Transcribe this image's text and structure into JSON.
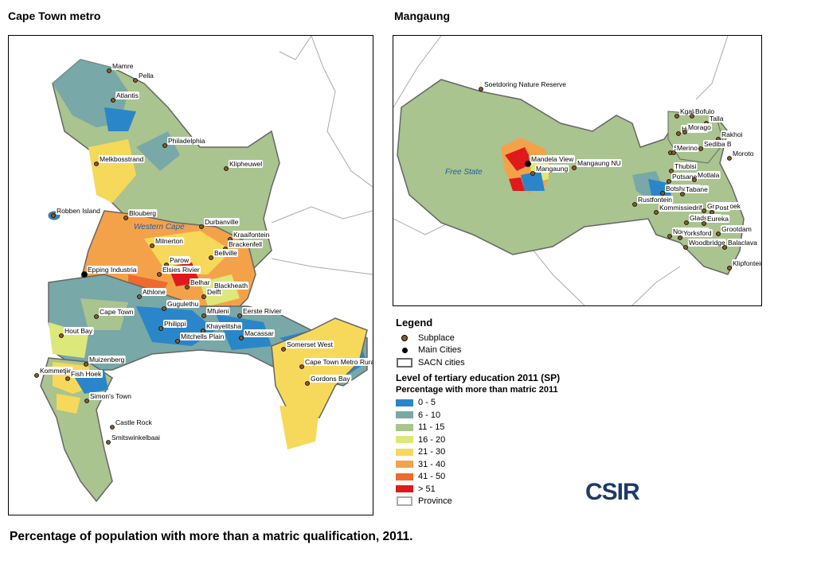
{
  "panels": {
    "left_title": "Cape Town metro",
    "right_title": "Mangaung"
  },
  "cape_town": {
    "region_label": "Western Cape",
    "places": [
      {
        "name": "Mamre"
      },
      {
        "name": "Pella"
      },
      {
        "name": "Atlantis"
      },
      {
        "name": "Philadelphia"
      },
      {
        "name": "Melkbosstrand"
      },
      {
        "name": "Klipheuwel"
      },
      {
        "name": "Robben Island"
      },
      {
        "name": "Blouberg"
      },
      {
        "name": "Durbanville"
      },
      {
        "name": "Kraaifontein"
      },
      {
        "name": "Brackenfell"
      },
      {
        "name": "Milnerton"
      },
      {
        "name": "Parow"
      },
      {
        "name": "Bellville"
      },
      {
        "name": "Elsies Rivier"
      },
      {
        "name": "Epping Industria"
      },
      {
        "name": "Belhar"
      },
      {
        "name": "Blackheath"
      },
      {
        "name": "Athlone"
      },
      {
        "name": "Delft"
      },
      {
        "name": "Gugulethu"
      },
      {
        "name": "Mfuleni"
      },
      {
        "name": "Eerste Rivier"
      },
      {
        "name": "Cape Town"
      },
      {
        "name": "Hout Bay"
      },
      {
        "name": "Philippi"
      },
      {
        "name": "Khayelitsha"
      },
      {
        "name": "Macassar"
      },
      {
        "name": "Mitchells Plain"
      },
      {
        "name": "Somerset West"
      },
      {
        "name": "Muizenberg"
      },
      {
        "name": "Cape Town Metro Rural"
      },
      {
        "name": "Kommetjie"
      },
      {
        "name": "Fish Hoek"
      },
      {
        "name": "Gordons Bay"
      },
      {
        "name": "Simon's Town"
      },
      {
        "name": "Castle Rock"
      },
      {
        "name": "Smitswinkelbaai"
      }
    ]
  },
  "mangaung": {
    "region_label": "Free State",
    "places": [
      {
        "name": "Soetdoring Nature Reserve"
      },
      {
        "name": "Kgalala"
      },
      {
        "name": "Bofulo"
      },
      {
        "name": "Talla"
      },
      {
        "name": "Houtnek"
      },
      {
        "name": "Morago"
      },
      {
        "name": "Rakhoi"
      },
      {
        "name": "Spitsko"
      },
      {
        "name": "Merino"
      },
      {
        "name": "Sediba B"
      },
      {
        "name": "Moroto"
      },
      {
        "name": "Mandela View"
      },
      {
        "name": "Mangaung NU"
      },
      {
        "name": "Thubisi"
      },
      {
        "name": "Mangaung"
      },
      {
        "name": "Potsane"
      },
      {
        "name": "Motlala"
      },
      {
        "name": "Botshabelo"
      },
      {
        "name": "Tabane"
      },
      {
        "name": "Rustfontein"
      },
      {
        "name": "Kommissiedrif"
      },
      {
        "name": "Grootfhoek"
      },
      {
        "name": "Post"
      },
      {
        "name": "Gladstone"
      },
      {
        "name": "Eureka"
      },
      {
        "name": "Grootdam"
      },
      {
        "name": "Nogas Post"
      },
      {
        "name": "Yorksford"
      },
      {
        "name": "Woodbridge"
      },
      {
        "name": "Balaclava"
      },
      {
        "name": "Klipfontein"
      }
    ]
  },
  "legend": {
    "title": "Legend",
    "subplace": "Subplace",
    "main_cities": "Main Cities",
    "sacn": "SACN cities",
    "indicator_title": "Level of tertiary education 2011 (SP)",
    "indicator_subtitle": "Percentage with more than matric 2011",
    "classes": [
      {
        "label": "0 - 5",
        "color": "#2a86c8"
      },
      {
        "label": "6 - 10",
        "color": "#78a8a8"
      },
      {
        "label": "11 - 15",
        "color": "#a9c48e"
      },
      {
        "label": "16 - 20",
        "color": "#dde87a"
      },
      {
        "label": "21 - 30",
        "color": "#f6d95a"
      },
      {
        "label": "31 - 40",
        "color": "#f4a24a"
      },
      {
        "label": "41 - 50",
        "color": "#ee6a2e"
      },
      {
        "label": "> 51",
        "color": "#e01a1a"
      }
    ],
    "province": "Province"
  },
  "logo_text": "CSIR",
  "caption": "Percentage of population with more than a matric qualification, 2011."
}
